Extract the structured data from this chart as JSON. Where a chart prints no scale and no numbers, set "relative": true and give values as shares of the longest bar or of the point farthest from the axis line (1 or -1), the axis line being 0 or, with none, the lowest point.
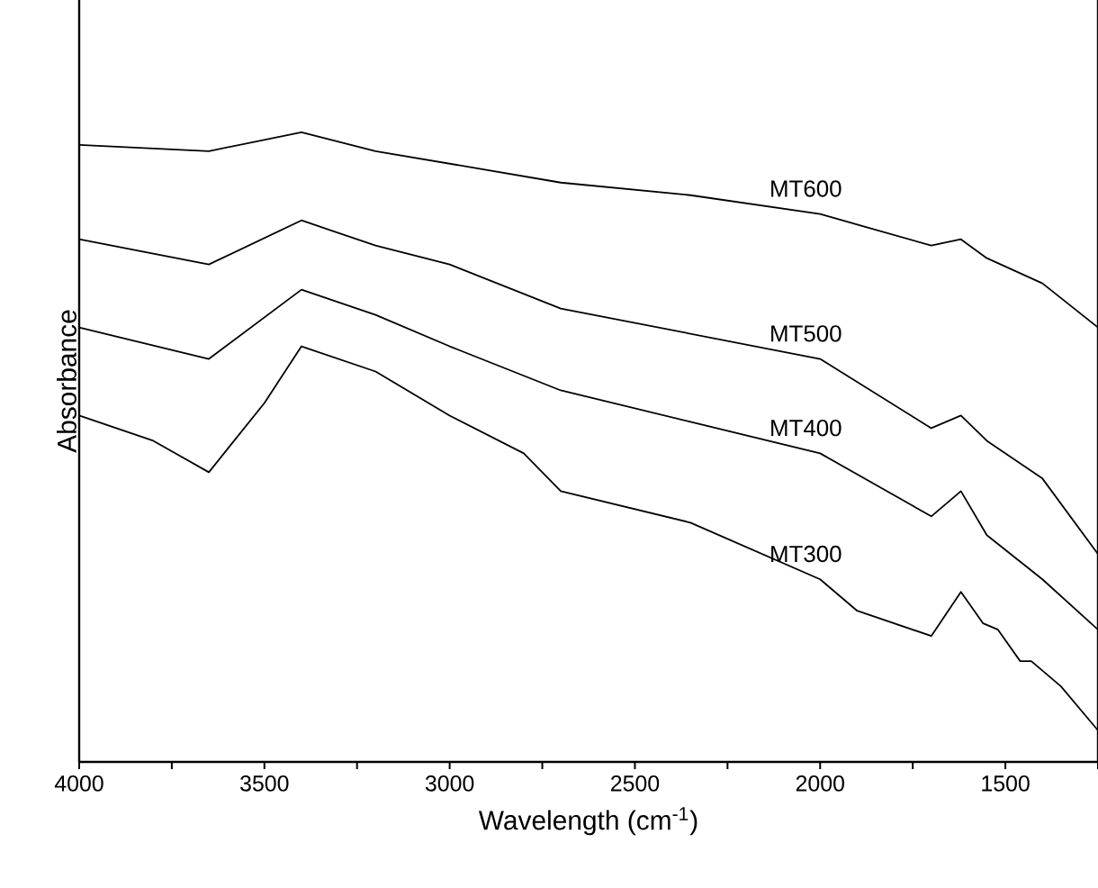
{
  "chart_data": {
    "type": "line",
    "relative": true,
    "xlabel": "Wavelength (cm$^{-1}$)",
    "ylabel": "Absorbance",
    "xlim": [
      4000,
      1250
    ],
    "xticks": [
      4000,
      {
        "value": 3750,
        "label": null
      },
      3500,
      {
        "value": 3250,
        "label": null
      },
      3000,
      {
        "value": 2750,
        "label": null
      },
      2500,
      {
        "value": 2250,
        "label": null
      },
      2000,
      {
        "value": 1750,
        "label": null
      },
      1500,
      {
        "value": 1250,
        "label": null
      }
    ],
    "tick_labels": "x",
    "series": [
      {
        "name": "MT600",
        "color": "#000000",
        "x": [
          4000,
          3650,
          3400,
          3200,
          3000,
          2700,
          2350,
          2000,
          1700,
          1620,
          1550,
          1400,
          1250
        ],
        "values": [
          0.98,
          0.97,
          1.0,
          0.97,
          0.95,
          0.92,
          0.9,
          0.87,
          0.82,
          0.83,
          0.8,
          0.76,
          0.69
        ]
      },
      {
        "name": "MT500",
        "color": "#000000",
        "x": [
          4000,
          3650,
          3400,
          3200,
          3000,
          2700,
          2350,
          2000,
          1700,
          1620,
          1550,
          1400,
          1250
        ],
        "values": [
          0.83,
          0.79,
          0.86,
          0.82,
          0.79,
          0.72,
          0.68,
          0.64,
          0.53,
          0.55,
          0.51,
          0.45,
          0.33
        ]
      },
      {
        "name": "MT400",
        "color": "#000000",
        "x": [
          4000,
          3650,
          3400,
          3200,
          3000,
          2700,
          2350,
          2000,
          1700,
          1620,
          1550,
          1400,
          1250
        ],
        "values": [
          0.69,
          0.64,
          0.75,
          0.71,
          0.66,
          0.59,
          0.54,
          0.49,
          0.39,
          0.43,
          0.36,
          0.29,
          0.21
        ]
      },
      {
        "name": "MT300",
        "color": "#000000",
        "x": [
          4000,
          3800,
          3650,
          3500,
          3400,
          3200,
          3000,
          2800,
          2700,
          2350,
          2000,
          1900,
          1700,
          1620,
          1560,
          1520,
          1460,
          1430,
          1350,
          1250
        ],
        "values": [
          0.55,
          0.51,
          0.46,
          0.57,
          0.66,
          0.62,
          0.55,
          0.49,
          0.43,
          0.38,
          0.29,
          0.24,
          0.2,
          0.27,
          0.22,
          0.21,
          0.16,
          0.16,
          0.12,
          0.05
        ]
      }
    ]
  }
}
